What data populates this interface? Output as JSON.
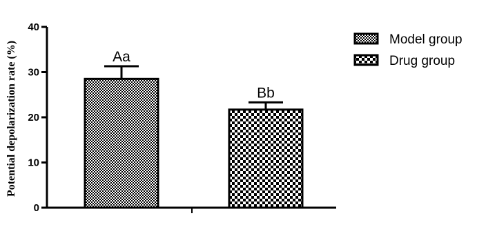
{
  "chart_data": {
    "type": "bar",
    "title": "",
    "xlabel": "",
    "ylabel": "Potential depolarization rate (%)",
    "ylim": [
      0,
      40
    ],
    "yticks": [
      0,
      10,
      20,
      30,
      40
    ],
    "grid": false,
    "legend_position": "top-right",
    "series": [
      {
        "name": "Model group",
        "value": 28.5,
        "error": 2.8,
        "label": "Aa",
        "pattern": "fine-checker"
      },
      {
        "name": "Drug group",
        "value": 21.7,
        "error": 1.6,
        "label": "Bb",
        "pattern": "coarse-checker"
      }
    ],
    "colors": {
      "bar_fill": "#000000",
      "background": "#ffffff"
    }
  }
}
